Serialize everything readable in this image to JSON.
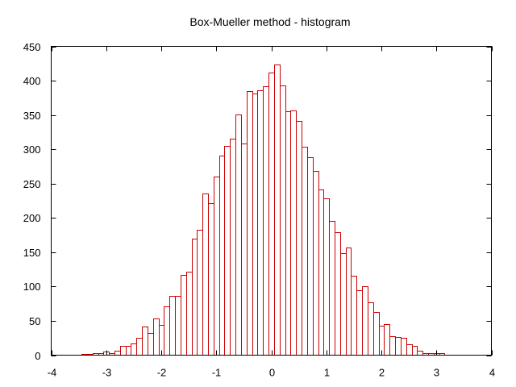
{
  "chart_data": {
    "type": "bar",
    "title": "Box-Mueller  method - histogram",
    "xlabel": "",
    "ylabel": "",
    "xlim": [
      -4,
      4
    ],
    "ylim": [
      0,
      450
    ],
    "grid": false,
    "legend": "none",
    "bar_color": "#cc0000",
    "bin_width": 0.1,
    "x": [
      -3.8,
      -3.7,
      -3.6,
      -3.5,
      -3.4,
      -3.3,
      -3.2,
      -3.1,
      -3.0,
      -2.9,
      -2.8,
      -2.7,
      -2.6,
      -2.5,
      -2.4,
      -2.3,
      -2.2,
      -2.1,
      -2.0,
      -1.9,
      -1.8,
      -1.7,
      -1.6,
      -1.5,
      -1.4,
      -1.3,
      -1.2,
      -1.1,
      -1.0,
      -0.9,
      -0.8,
      -0.7,
      -0.6,
      -0.5,
      -0.4,
      -0.3,
      -0.2,
      -0.1,
      0.0,
      0.1,
      0.2,
      0.3,
      0.4,
      0.5,
      0.6,
      0.7,
      0.8,
      0.9,
      1.0,
      1.1,
      1.2,
      1.3,
      1.4,
      1.5,
      1.6,
      1.7,
      1.8,
      1.9,
      2.0,
      2.1,
      2.2,
      2.3,
      2.4,
      2.5,
      2.6,
      2.7,
      2.8,
      2.9,
      3.0,
      3.1,
      3.2,
      3.3,
      3.4,
      3.5,
      3.6
    ],
    "values": [
      1,
      1,
      1,
      1,
      2,
      2,
      3,
      3,
      5,
      3,
      7,
      13,
      14,
      17,
      25,
      42,
      32,
      53,
      44,
      71,
      86,
      86,
      117,
      122,
      170,
      183,
      235,
      221,
      260,
      291,
      305,
      316,
      351,
      309,
      385,
      381,
      386,
      392,
      412,
      423,
      393,
      356,
      357,
      341,
      304,
      288,
      269,
      242,
      229,
      196,
      179,
      149,
      157,
      116,
      95,
      101,
      77,
      63,
      43,
      45,
      28,
      27,
      25,
      16,
      14,
      6,
      3,
      3,
      3,
      3,
      1,
      1,
      1,
      1,
      1
    ],
    "x_ticks": [
      "-4",
      "-3",
      "-2",
      "-1",
      "0",
      "1",
      "2",
      "3",
      "4"
    ],
    "y_ticks": [
      "0",
      "50",
      "100",
      "150",
      "200",
      "250",
      "300",
      "350",
      "400",
      "450"
    ]
  }
}
